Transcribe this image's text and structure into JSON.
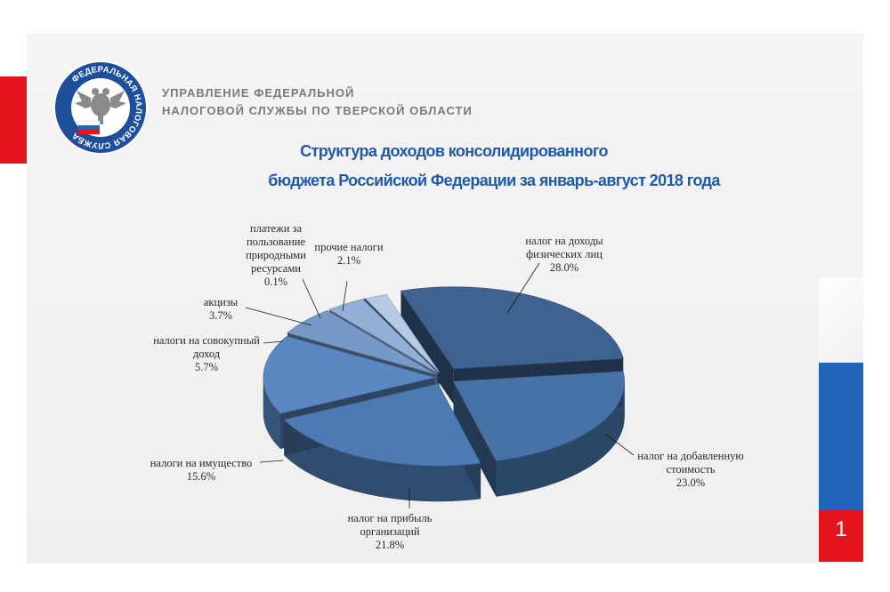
{
  "header": {
    "org_line1": "УПРАВЛЕНИЕ ФЕДЕРАЛЬНОЙ",
    "org_line2": "НАЛОГОВОЙ СЛУЖБЫ ПО ТВЕРСКОЙ ОБЛАСТИ",
    "logo_text": "ФЕДЕРАЛЬНАЯ НАЛОГОВАЯ СЛУЖБА"
  },
  "page_number": "1",
  "colors": {
    "accent_red": "#e3141b",
    "accent_blue": "#1f64b6",
    "title": "#1e5aa8"
  },
  "chart_data": {
    "type": "pie",
    "title_line1": "Структура доходов консолидированного",
    "title_line2": "бюджета Российской Федерации за январь-август 2018 года",
    "units": "%",
    "slices": [
      {
        "label": "налог на доходы физических лиц",
        "label_lines": [
          "налог на доходы",
          "физических лиц"
        ],
        "value": 28.0,
        "value_text": "28.0%",
        "color": "#3f6391"
      },
      {
        "label": "налог на добавленную стоимость",
        "label_lines": [
          "налог на добавленную",
          "стоимость"
        ],
        "value": 23.0,
        "value_text": "23.0%",
        "color": "#4672a6"
      },
      {
        "label": "налог на прибыль организаций",
        "label_lines": [
          "налог на прибыль",
          "организаций"
        ],
        "value": 21.8,
        "value_text": "21.8%",
        "color": "#4d7ab2"
      },
      {
        "label": "налоги на имущество",
        "label_lines": [
          "налоги на имущество"
        ],
        "value": 15.6,
        "value_text": "15.6%",
        "color": "#5b88c2"
      },
      {
        "label": "налоги на совокупный доход",
        "label_lines": [
          "налоги на совокупный",
          "доход"
        ],
        "value": 5.7,
        "value_text": "5.7%",
        "color": "#7799c8"
      },
      {
        "label": "акцизы",
        "label_lines": [
          "акцизы"
        ],
        "value": 3.7,
        "value_text": "3.7%",
        "color": "#93afd6"
      },
      {
        "label": "платежи за пользование природными ресурсами",
        "label_lines": [
          "платежи за",
          "пользование",
          "природными",
          "ресурсами"
        ],
        "value": 0.1,
        "value_text": "0.1%",
        "color": "#2f4f78"
      },
      {
        "label": "прочие налоги",
        "label_lines": [
          "прочие налоги"
        ],
        "value": 2.1,
        "value_text": "2.1%",
        "color": "#b7c9e3"
      }
    ],
    "legend": "none",
    "exploded": true,
    "style": "3d"
  }
}
